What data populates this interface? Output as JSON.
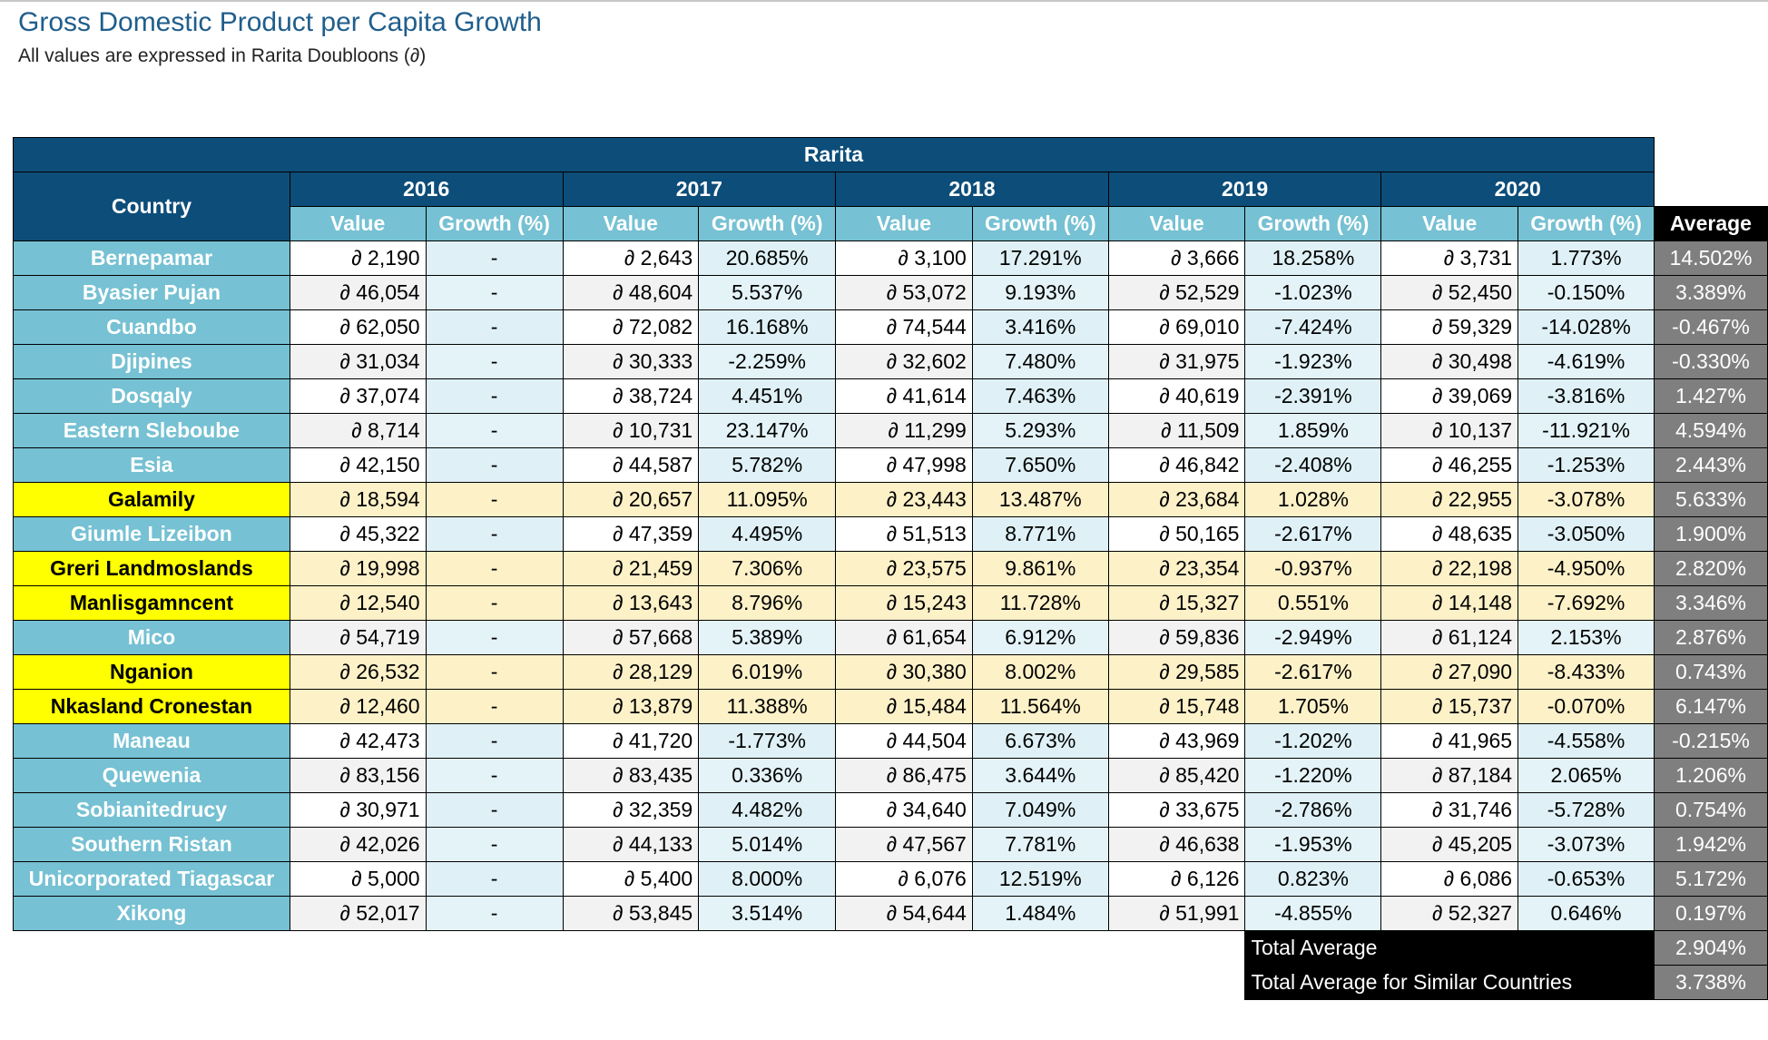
{
  "title": "Gross Domestic Product per Capita Growth",
  "subtitle": "All values are expressed in Rarita Doubloons (∂)",
  "region": "Rarita",
  "country_header": "Country",
  "years": [
    "2016",
    "2017",
    "2018",
    "2019",
    "2020"
  ],
  "value_label": "Value",
  "growth_label": "Growth (%)",
  "average_label": "Average",
  "rows": [
    {
      "country": "Bernepamar",
      "highlight": false,
      "cells": [
        "∂ 2,190",
        "-",
        "∂ 2,643",
        "20.685%",
        "∂ 3,100",
        "17.291%",
        "∂ 3,666",
        "18.258%",
        "∂ 3,731",
        "1.773%"
      ],
      "average": "14.502%"
    },
    {
      "country": "Byasier Pujan",
      "highlight": false,
      "cells": [
        "∂ 46,054",
        "-",
        "∂ 48,604",
        "5.537%",
        "∂ 53,072",
        "9.193%",
        "∂ 52,529",
        "-1.023%",
        "∂ 52,450",
        "-0.150%"
      ],
      "average": "3.389%"
    },
    {
      "country": "Cuandbo",
      "highlight": false,
      "cells": [
        "∂ 62,050",
        "-",
        "∂ 72,082",
        "16.168%",
        "∂ 74,544",
        "3.416%",
        "∂ 69,010",
        "-7.424%",
        "∂ 59,329",
        "-14.028%"
      ],
      "average": "-0.467%"
    },
    {
      "country": "Djipines",
      "highlight": false,
      "cells": [
        "∂ 31,034",
        "-",
        "∂ 30,333",
        "-2.259%",
        "∂ 32,602",
        "7.480%",
        "∂ 31,975",
        "-1.923%",
        "∂ 30,498",
        "-4.619%"
      ],
      "average": "-0.330%"
    },
    {
      "country": "Dosqaly",
      "highlight": false,
      "cells": [
        "∂ 37,074",
        "-",
        "∂ 38,724",
        "4.451%",
        "∂ 41,614",
        "7.463%",
        "∂ 40,619",
        "-2.391%",
        "∂ 39,069",
        "-3.816%"
      ],
      "average": "1.427%"
    },
    {
      "country": "Eastern Sleboube",
      "highlight": false,
      "cells": [
        "∂ 8,714",
        "-",
        "∂ 10,731",
        "23.147%",
        "∂ 11,299",
        "5.293%",
        "∂ 11,509",
        "1.859%",
        "∂ 10,137",
        "-11.921%"
      ],
      "average": "4.594%"
    },
    {
      "country": "Esia",
      "highlight": false,
      "cells": [
        "∂ 42,150",
        "-",
        "∂ 44,587",
        "5.782%",
        "∂ 47,998",
        "7.650%",
        "∂ 46,842",
        "-2.408%",
        "∂ 46,255",
        "-1.253%"
      ],
      "average": "2.443%"
    },
    {
      "country": "Galamily",
      "highlight": true,
      "cells": [
        "∂ 18,594",
        "-",
        "∂ 20,657",
        "11.095%",
        "∂ 23,443",
        "13.487%",
        "∂ 23,684",
        "1.028%",
        "∂ 22,955",
        "-3.078%"
      ],
      "average": "5.633%"
    },
    {
      "country": "Giumle Lizeibon",
      "highlight": false,
      "cells": [
        "∂ 45,322",
        "-",
        "∂ 47,359",
        "4.495%",
        "∂ 51,513",
        "8.771%",
        "∂ 50,165",
        "-2.617%",
        "∂ 48,635",
        "-3.050%"
      ],
      "average": "1.900%"
    },
    {
      "country": "Greri Landmoslands",
      "highlight": true,
      "cells": [
        "∂ 19,998",
        "-",
        "∂ 21,459",
        "7.306%",
        "∂ 23,575",
        "9.861%",
        "∂ 23,354",
        "-0.937%",
        "∂ 22,198",
        "-4.950%"
      ],
      "average": "2.820%"
    },
    {
      "country": "Manlisgamncent",
      "highlight": true,
      "cells": [
        "∂ 12,540",
        "-",
        "∂ 13,643",
        "8.796%",
        "∂ 15,243",
        "11.728%",
        "∂ 15,327",
        "0.551%",
        "∂ 14,148",
        "-7.692%"
      ],
      "average": "3.346%"
    },
    {
      "country": "Mico",
      "highlight": false,
      "cells": [
        "∂ 54,719",
        "-",
        "∂ 57,668",
        "5.389%",
        "∂ 61,654",
        "6.912%",
        "∂ 59,836",
        "-2.949%",
        "∂ 61,124",
        "2.153%"
      ],
      "average": "2.876%"
    },
    {
      "country": "Nganion",
      "highlight": true,
      "cells": [
        "∂ 26,532",
        "-",
        "∂ 28,129",
        "6.019%",
        "∂ 30,380",
        "8.002%",
        "∂ 29,585",
        "-2.617%",
        "∂ 27,090",
        "-8.433%"
      ],
      "average": "0.743%"
    },
    {
      "country": "Nkasland Cronestan",
      "highlight": true,
      "cells": [
        "∂ 12,460",
        "-",
        "∂ 13,879",
        "11.388%",
        "∂ 15,484",
        "11.564%",
        "∂ 15,748",
        "1.705%",
        "∂ 15,737",
        "-0.070%"
      ],
      "average": "6.147%"
    },
    {
      "country": "Maneau",
      "highlight": false,
      "cells": [
        "∂ 42,473",
        "-",
        "∂ 41,720",
        "-1.773%",
        "∂ 44,504",
        "6.673%",
        "∂ 43,969",
        "-1.202%",
        "∂ 41,965",
        "-4.558%"
      ],
      "average": "-0.215%"
    },
    {
      "country": "Quewenia",
      "highlight": false,
      "cells": [
        "∂ 83,156",
        "-",
        "∂ 83,435",
        "0.336%",
        "∂ 86,475",
        "3.644%",
        "∂ 85,420",
        "-1.220%",
        "∂ 87,184",
        "2.065%"
      ],
      "average": "1.206%"
    },
    {
      "country": "Sobianitedrucy",
      "highlight": false,
      "cells": [
        "∂ 30,971",
        "-",
        "∂ 32,359",
        "4.482%",
        "∂ 34,640",
        "7.049%",
        "∂ 33,675",
        "-2.786%",
        "∂ 31,746",
        "-5.728%"
      ],
      "average": "0.754%"
    },
    {
      "country": "Southern Ristan",
      "highlight": false,
      "cells": [
        "∂ 42,026",
        "-",
        "∂ 44,133",
        "5.014%",
        "∂ 47,567",
        "7.781%",
        "∂ 46,638",
        "-1.953%",
        "∂ 45,205",
        "-3.073%"
      ],
      "average": "1.942%"
    },
    {
      "country": "Unicorporated Tiagascar",
      "highlight": false,
      "cells": [
        "∂ 5,000",
        "-",
        "∂ 5,400",
        "8.000%",
        "∂ 6,076",
        "12.519%",
        "∂ 6,126",
        "0.823%",
        "∂ 6,086",
        "-0.653%"
      ],
      "average": "5.172%"
    },
    {
      "country": "Xikong",
      "highlight": false,
      "cells": [
        "∂ 52,017",
        "-",
        "∂ 53,845",
        "3.514%",
        "∂ 54,644",
        "1.484%",
        "∂ 51,991",
        "-4.855%",
        "∂ 52,327",
        "0.646%"
      ],
      "average": "0.197%"
    }
  ],
  "totals": [
    {
      "label": "Total Average",
      "value": "2.904%"
    },
    {
      "label": "Total Average for Similar Countries",
      "value": "3.738%"
    }
  ],
  "colors": {
    "header_dark": "#0d4d79",
    "header_light": "#76c1d3",
    "highlight": "#ffff00",
    "highlight_row": "#fdf1c8",
    "average": "#7f7f7f",
    "title": "#1f5e8c"
  }
}
